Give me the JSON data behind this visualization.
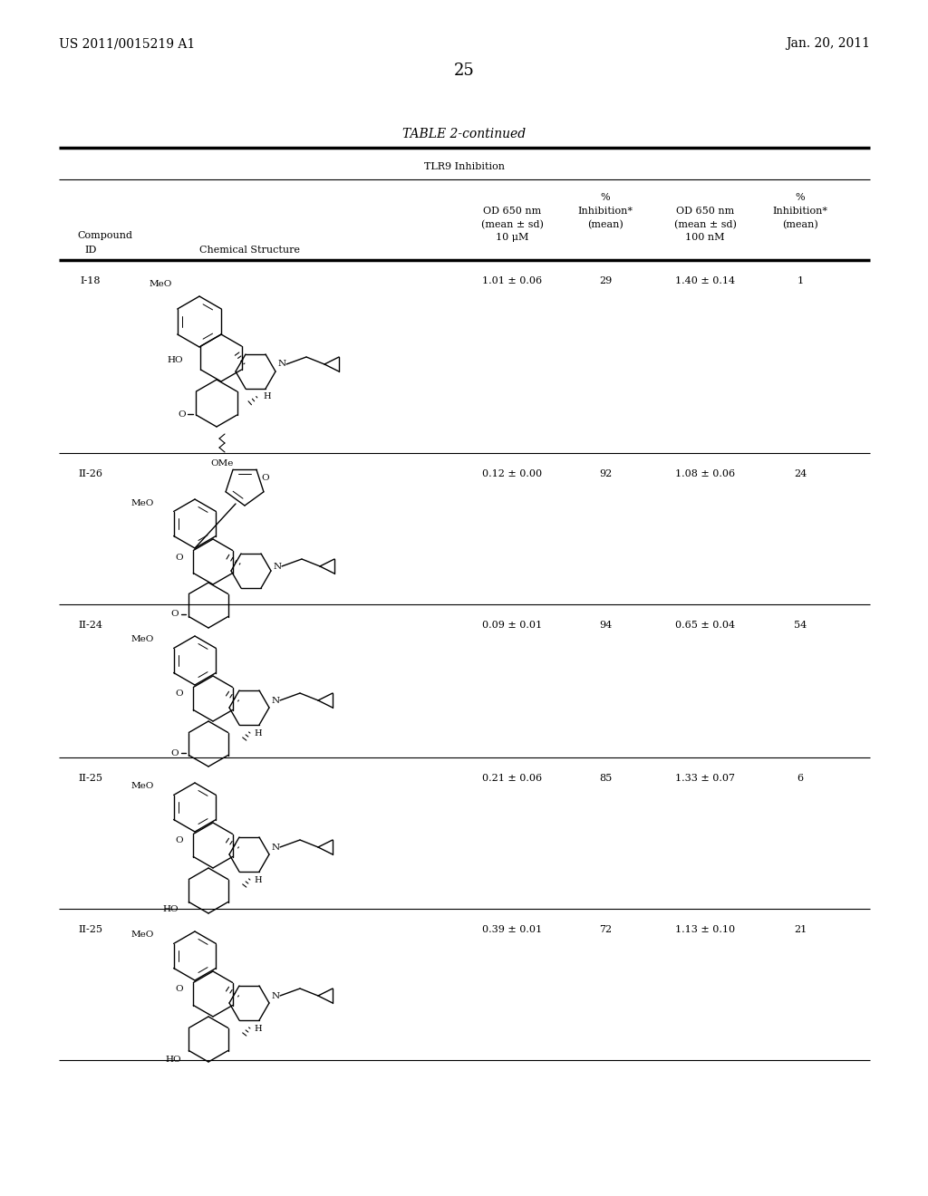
{
  "page_header_left": "US 2011/0015219 A1",
  "page_header_right": "Jan. 20, 2011",
  "page_number": "25",
  "table_title": "TABLE 2-continued",
  "table_subtitle": "TLR9 Inhibition",
  "rows": [
    {
      "id": "I-18",
      "od1": "1.01 ± 0.06",
      "inh1": "29",
      "od2": "1.40 ± 0.14",
      "inh2": "1"
    },
    {
      "id": "II-26",
      "od1": "0.12 ± 0.00",
      "inh1": "92",
      "od2": "1.08 ± 0.06",
      "inh2": "24"
    },
    {
      "id": "II-24",
      "od1": "0.09 ± 0.01",
      "inh1": "94",
      "od2": "0.65 ± 0.04",
      "inh2": "54"
    },
    {
      "id": "II-25",
      "od1": "0.21 ± 0.06",
      "inh1": "85",
      "od2": "1.33 ± 0.07",
      "inh2": "6"
    },
    {
      "id": "II-25",
      "od1": "0.39 ± 0.01",
      "inh1": "72",
      "od2": "1.13 ± 0.10",
      "inh2": "21"
    }
  ],
  "bg_color": "#ffffff",
  "line_color": "#000000",
  "fs_page": 10,
  "fs_title": 10,
  "fs_body": 8,
  "fs_struct": 7
}
